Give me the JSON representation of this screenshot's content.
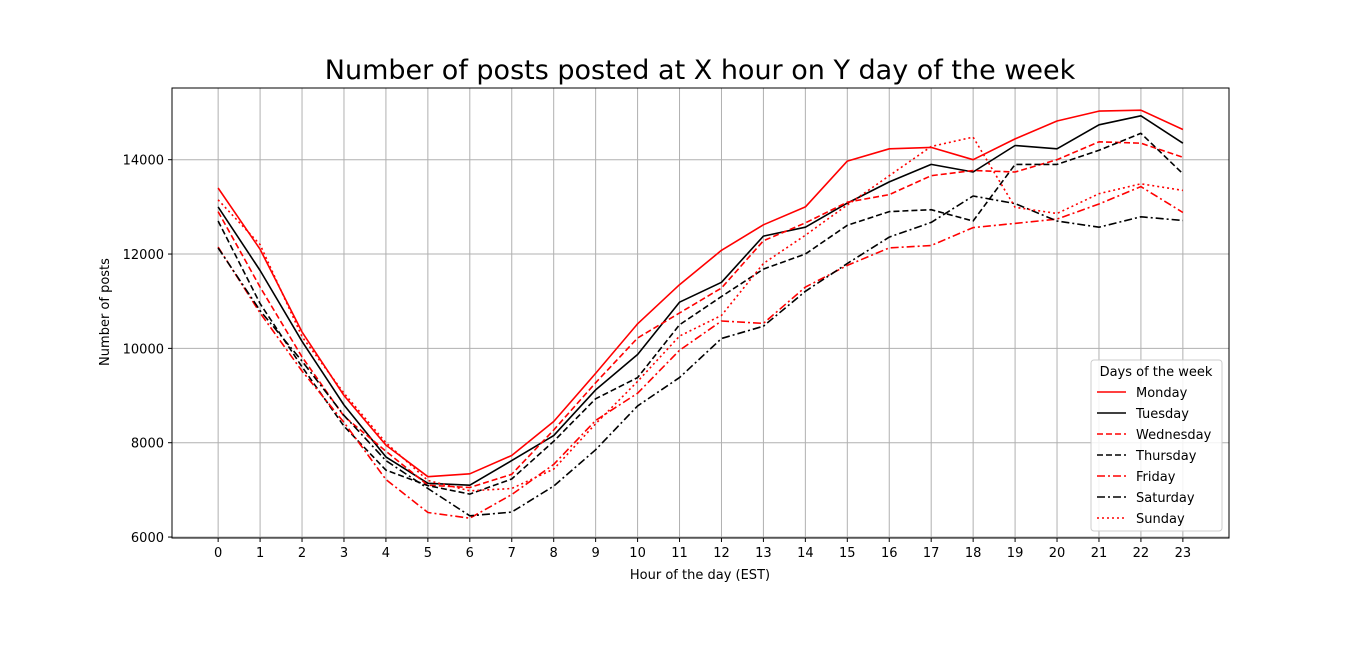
{
  "chart_data": {
    "type": "line",
    "title": "Number of posts posted at X hour on Y day of the week",
    "xlabel": "Hour of the day (EST)",
    "ylabel": "Number of posts",
    "x": [
      0,
      1,
      2,
      3,
      4,
      5,
      6,
      7,
      8,
      9,
      10,
      11,
      12,
      13,
      14,
      15,
      16,
      17,
      18,
      19,
      20,
      21,
      22,
      23
    ],
    "xlim": [
      -1.1,
      24.1
    ],
    "ylim": [
      5980,
      15520
    ],
    "yticks": [
      6000,
      8000,
      10000,
      12000,
      14000
    ],
    "grid": true,
    "legend": {
      "title": "Days of the week",
      "placement": "lower-right"
    },
    "series": [
      {
        "name": "Monday",
        "color": "#ff0000",
        "dash": "solid",
        "values": [
          13400,
          12100,
          10350,
          9000,
          7950,
          7280,
          7340,
          7730,
          8450,
          9470,
          10520,
          11350,
          12080,
          12620,
          13000,
          13970,
          14230,
          14260,
          14000,
          14440,
          14820,
          15030,
          15050,
          14640
        ]
      },
      {
        "name": "Tuesday",
        "color": "#000000",
        "dash": "solid",
        "values": [
          13000,
          11650,
          10150,
          8800,
          7700,
          7140,
          7100,
          7620,
          8150,
          9120,
          9870,
          10980,
          11400,
          12380,
          12570,
          13080,
          13530,
          13900,
          13740,
          14300,
          14230,
          14740,
          14930,
          14350
        ]
      },
      {
        "name": "Wednesday",
        "color": "#ff0000",
        "dash": "dashed",
        "values": [
          12900,
          11300,
          9820,
          8560,
          7820,
          7100,
          7050,
          7330,
          8270,
          9270,
          10220,
          10750,
          11280,
          12280,
          12660,
          13100,
          13260,
          13660,
          13770,
          13740,
          14000,
          14380,
          14350,
          14050
        ]
      },
      {
        "name": "Thursday",
        "color": "#000000",
        "dash": "dashed",
        "values": [
          12700,
          10950,
          9610,
          8350,
          7420,
          7090,
          6910,
          7230,
          8030,
          8930,
          9380,
          10500,
          11100,
          11680,
          12000,
          12610,
          12900,
          12940,
          12700,
          13900,
          13900,
          14200,
          14560,
          13700
        ]
      },
      {
        "name": "Friday",
        "color": "#ff0000",
        "dash": "dashdot",
        "values": [
          12150,
          10750,
          9520,
          8430,
          7220,
          6520,
          6400,
          6900,
          7540,
          8470,
          9050,
          9960,
          10580,
          10530,
          11300,
          11760,
          12130,
          12180,
          12560,
          12650,
          12740,
          13060,
          13430,
          12880
        ]
      },
      {
        "name": "Saturday",
        "color": "#000000",
        "dash": "dashdot",
        "values": [
          12130,
          10800,
          9730,
          8580,
          7620,
          7030,
          6450,
          6530,
          7080,
          7850,
          8780,
          9380,
          10210,
          10470,
          11210,
          11800,
          12360,
          12670,
          13230,
          13070,
          12700,
          12570,
          12790,
          12710
        ]
      },
      {
        "name": "Sunday",
        "color": "#ff0000",
        "dash": "dotted",
        "values": [
          13150,
          12200,
          10250,
          9050,
          8000,
          7200,
          6980,
          7030,
          7440,
          8400,
          9300,
          10260,
          10700,
          11800,
          12400,
          13040,
          13660,
          14280,
          14480,
          12990,
          12860,
          13280,
          13490,
          13350
        ]
      }
    ]
  }
}
